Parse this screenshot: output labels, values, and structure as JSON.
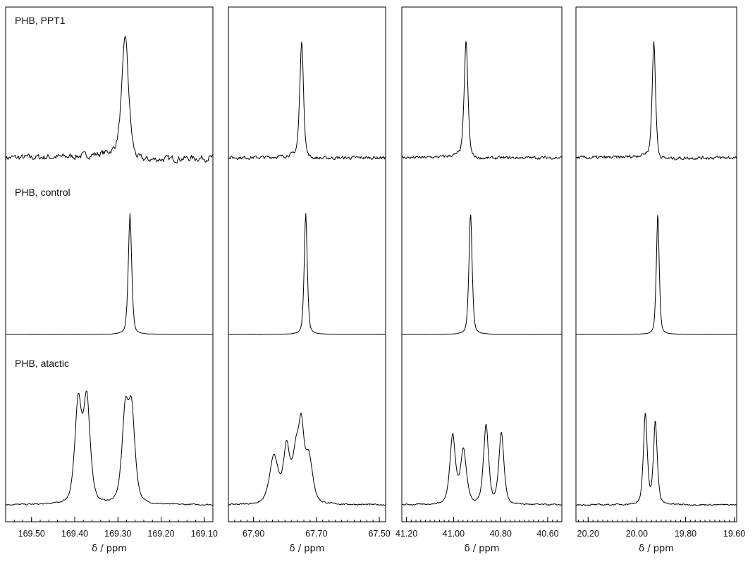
{
  "chart_data": {
    "type": "line",
    "rows": [
      "PHB, PPT1",
      "PHB, control",
      "PHB, atactic"
    ],
    "panels": [
      {
        "xlabel": "δ / ppm",
        "xlim": [
          169.56,
          169.08
        ],
        "major_ticks": [
          169.5,
          169.4,
          169.3,
          169.2,
          169.1
        ],
        "tick_labels": [
          "169.50",
          "169.40",
          "169.30",
          "169.20",
          "169.10"
        ],
        "minor_step": 0.02,
        "series": [
          {
            "baseline": 0.32,
            "noise": 0.09,
            "peaks": [
              {
                "x": 169.283,
                "h": 1.0,
                "w": 0.008
              }
            ],
            "skew": 0.35
          },
          {
            "baseline": 0.0,
            "noise": 0.004,
            "peaks": [
              {
                "x": 169.272,
                "h": 1.0,
                "w": 0.004
              }
            ],
            "skew": 0
          },
          {
            "baseline": 0.0,
            "noise": 0.02,
            "peaks": [
              {
                "x": 169.392,
                "h": 0.83,
                "w": 0.008
              },
              {
                "x": 169.372,
                "h": 0.86,
                "w": 0.008
              },
              {
                "x": 169.283,
                "h": 0.72,
                "w": 0.008
              },
              {
                "x": 169.268,
                "h": 0.72,
                "w": 0.008
              }
            ],
            "skew": 0
          }
        ]
      },
      {
        "xlabel": "δ / ppm",
        "xlim": [
          67.98,
          67.48
        ],
        "major_ticks": [
          67.9,
          67.7,
          67.5
        ],
        "tick_labels": [
          "67.90",
          "67.70",
          "67.50"
        ],
        "minor_step": 0.02,
        "series": [
          {
            "baseline": 0.12,
            "noise": 0.045,
            "peaks": [
              {
                "x": 67.747,
                "h": 0.96,
                "w": 0.006
              }
            ],
            "skew": 0.15
          },
          {
            "baseline": 0.0,
            "noise": 0.004,
            "peaks": [
              {
                "x": 67.734,
                "h": 1.0,
                "w": 0.005
              }
            ],
            "skew": 0
          },
          {
            "baseline": 0.03,
            "noise": 0.02,
            "peaks": [
              {
                "x": 67.835,
                "h": 0.4,
                "w": 0.014
              },
              {
                "x": 67.795,
                "h": 0.45,
                "w": 0.01
              },
              {
                "x": 67.765,
                "h": 0.4,
                "w": 0.012
              },
              {
                "x": 67.748,
                "h": 0.52,
                "w": 0.009
              },
              {
                "x": 67.724,
                "h": 0.38,
                "w": 0.012
              }
            ],
            "skew": 0
          }
        ]
      },
      {
        "xlabel": "δ / ppm",
        "xlim": [
          41.22,
          40.54
        ],
        "major_ticks": [
          41.2,
          41.0,
          40.8,
          40.6
        ],
        "tick_labels": [
          "41.20",
          "41.00",
          "40.80",
          "40.60"
        ],
        "minor_step": 0.02,
        "series": [
          {
            "baseline": 0.12,
            "noise": 0.04,
            "peaks": [
              {
                "x": 40.947,
                "h": 0.96,
                "w": 0.008
              }
            ],
            "skew": 0.15
          },
          {
            "baseline": 0.0,
            "noise": 0.004,
            "peaks": [
              {
                "x": 40.928,
                "h": 1.0,
                "w": 0.007
              }
            ],
            "skew": 0
          },
          {
            "baseline": 0.0,
            "noise": 0.02,
            "peaks": [
              {
                "x": 41.004,
                "h": 0.58,
                "w": 0.012
              },
              {
                "x": 40.958,
                "h": 0.45,
                "w": 0.013
              },
              {
                "x": 40.862,
                "h": 0.66,
                "w": 0.011
              },
              {
                "x": 40.797,
                "h": 0.6,
                "w": 0.011
              }
            ],
            "skew": 0
          }
        ]
      },
      {
        "xlabel": "δ / ppm",
        "xlim": [
          20.25,
          19.59
        ],
        "major_ticks": [
          20.2,
          20.0,
          19.8,
          19.6
        ],
        "tick_labels": [
          "20.20",
          "20.00",
          "19.80",
          "19.60"
        ],
        "minor_step": 0.02,
        "series": [
          {
            "baseline": 0.08,
            "noise": 0.045,
            "peaks": [
              {
                "x": 19.93,
                "h": 0.96,
                "w": 0.007
              }
            ],
            "skew": 0.2
          },
          {
            "baseline": 0.0,
            "noise": 0.004,
            "peaks": [
              {
                "x": 19.914,
                "h": 1.0,
                "w": 0.006
              }
            ],
            "skew": 0
          },
          {
            "baseline": 0.0,
            "noise": 0.02,
            "peaks": [
              {
                "x": 19.965,
                "h": 0.76,
                "w": 0.008
              },
              {
                "x": 19.924,
                "h": 0.69,
                "w": 0.008
              }
            ],
            "skew": 0
          }
        ]
      }
    ]
  }
}
